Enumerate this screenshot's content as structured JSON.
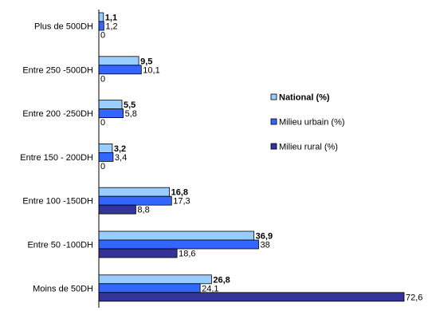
{
  "chart_data": {
    "type": "bar",
    "orientation": "horizontal",
    "categories": [
      "Plus de 500DH",
      "Entre 250 -500DH",
      "Entre 200 -250DH",
      "Entre 150 - 200DH",
      "Entre 100 -150DH",
      "Entre 50 -100DH",
      "Moins de 50DH"
    ],
    "series": [
      {
        "name": "National (%)",
        "color": "#99ccff",
        "bold": true,
        "values": [
          1.1,
          9.5,
          5.5,
          3.2,
          16.8,
          36.9,
          26.8
        ],
        "labels": [
          "1,1",
          "9,5",
          "5,5",
          "3,2",
          "16,8",
          "36,9",
          "26,8"
        ]
      },
      {
        "name": "Milieu urbain (%)",
        "color": "#3366ff",
        "bold": false,
        "values": [
          1.2,
          10.1,
          5.8,
          3.4,
          17.3,
          38,
          24.1
        ],
        "labels": [
          "1,2",
          "10,1",
          "5,8",
          "3,4",
          "17,3",
          "38",
          "24,1"
        ]
      },
      {
        "name": "Milieu rural (%)",
        "color": "#333399",
        "bold": false,
        "values": [
          0,
          0,
          0,
          0,
          8.8,
          18.6,
          72.6
        ],
        "labels": [
          "0",
          "0",
          "0",
          "0",
          "8,8",
          "18,6",
          "72,6"
        ]
      }
    ],
    "xlim": [
      0,
      72.6
    ],
    "legend_position": "right",
    "grid": false,
    "title": "",
    "xlabel": "",
    "ylabel": ""
  }
}
